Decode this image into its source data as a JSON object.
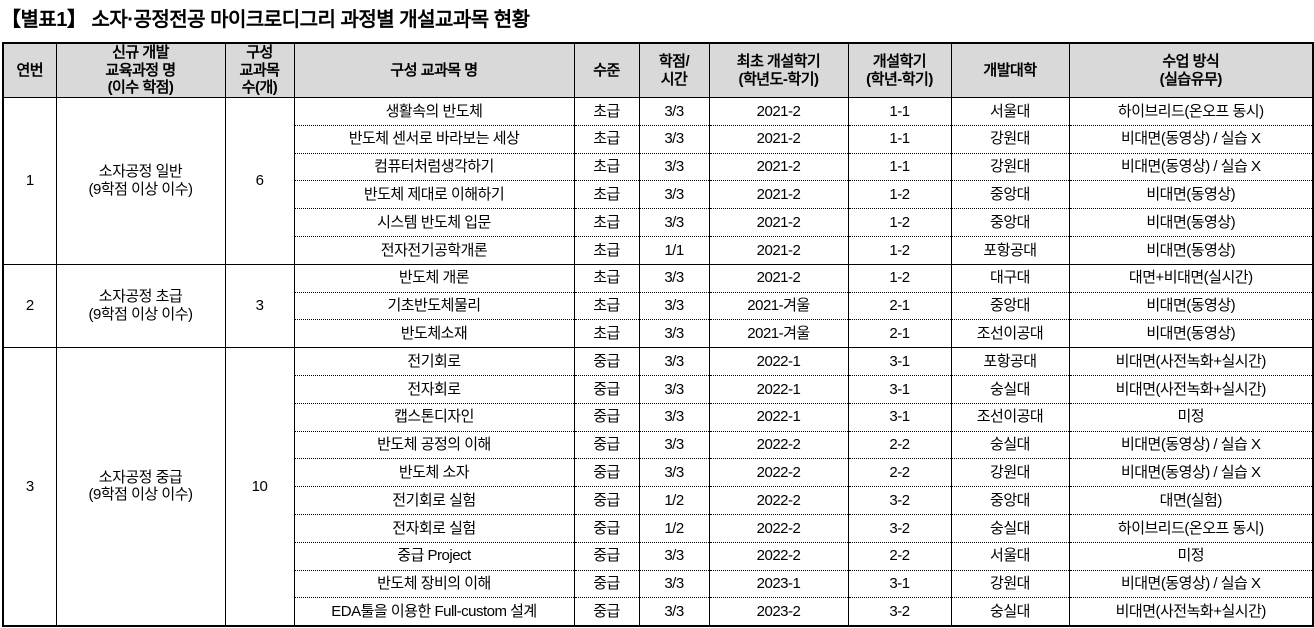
{
  "page_title": "【별표1】 소자·공정전공 마이크로디그리 과정별 개설교과목 현황",
  "table": {
    "headers": [
      {
        "label": "연번"
      },
      {
        "label": "신규 개발\n교육과정 명\n(이수 학점)"
      },
      {
        "label": "구성\n교과목\n수(개)"
      },
      {
        "label": "구성 교과목 명"
      },
      {
        "label": "수준"
      },
      {
        "label": "학점/\n시간"
      },
      {
        "label": "최초 개설학기\n(학년도-학기)"
      },
      {
        "label": "개설학기\n(학년-학기)"
      },
      {
        "label": "개발대학"
      },
      {
        "label": "수업 방식\n(실습유무)"
      }
    ],
    "groups": [
      {
        "no": "1",
        "program": "소자공정 일반\n(9학점 이상 이수)",
        "course_count": "6",
        "courses": [
          [
            "생활속의 반도체",
            "초급",
            "3/3",
            "2021-2",
            "1-1",
            "서울대",
            "하이브리드(온오프 동시)"
          ],
          [
            "반도체 센서로 바라보는 세상",
            "초급",
            "3/3",
            "2021-2",
            "1-1",
            "강원대",
            "비대면(동영상) / 실습 X"
          ],
          [
            "컴퓨터처럼생각하기",
            "초급",
            "3/3",
            "2021-2",
            "1-1",
            "강원대",
            "비대면(동영상) / 실습 X"
          ],
          [
            "반도체 제대로 이해하기",
            "초급",
            "3/3",
            "2021-2",
            "1-2",
            "중앙대",
            "비대면(동영상)"
          ],
          [
            "시스템 반도체 입문",
            "초급",
            "3/3",
            "2021-2",
            "1-2",
            "중앙대",
            "비대면(동영상)"
          ],
          [
            "전자전기공학개론",
            "초급",
            "1/1",
            "2021-2",
            "1-2",
            "포항공대",
            "비대면(동영상)"
          ]
        ]
      },
      {
        "no": "2",
        "program": "소자공정 초급\n(9학점 이상 이수)",
        "course_count": "3",
        "courses": [
          [
            "반도체 개론",
            "초급",
            "3/3",
            "2021-2",
            "1-2",
            "대구대",
            "대면+비대면(실시간)"
          ],
          [
            "기초반도체물리",
            "초급",
            "3/3",
            "2021-겨울",
            "2-1",
            "중앙대",
            "비대면(동영상)"
          ],
          [
            "반도체소재",
            "초급",
            "3/3",
            "2021-겨울",
            "2-1",
            "조선이공대",
            "비대면(동영상)"
          ]
        ]
      },
      {
        "no": "3",
        "program": "소자공정 중급\n(9학점 이상 이수)",
        "course_count": "10",
        "courses": [
          [
            "전기회로",
            "중급",
            "3/3",
            "2022-1",
            "3-1",
            "포항공대",
            "비대면(사전녹화+실시간)"
          ],
          [
            "전자회로",
            "중급",
            "3/3",
            "2022-1",
            "3-1",
            "숭실대",
            "비대면(사전녹화+실시간)"
          ],
          [
            "캡스톤디자인",
            "중급",
            "3/3",
            "2022-1",
            "3-1",
            "조선이공대",
            "미정"
          ],
          [
            "반도체 공정의 이해",
            "중급",
            "3/3",
            "2022-2",
            "2-2",
            "숭실대",
            "비대면(동영상) / 실습 X"
          ],
          [
            "반도체 소자",
            "중급",
            "3/3",
            "2022-2",
            "2-2",
            "강원대",
            "비대면(동영상) / 실습 X"
          ],
          [
            "전기회로 실험",
            "중급",
            "1/2",
            "2022-2",
            "3-2",
            "중앙대",
            "대면(실험)"
          ],
          [
            "전자회로 실험",
            "중급",
            "1/2",
            "2022-2",
            "3-2",
            "숭실대",
            "하이브리드(온오프 동시)"
          ],
          [
            "중급 Project",
            "중급",
            "3/3",
            "2022-2",
            "2-2",
            "서울대",
            "미정"
          ],
          [
            "반도체 장비의 이해",
            "중급",
            "3/3",
            "2023-1",
            "3-1",
            "강원대",
            "비대면(동영상) / 실습 X"
          ],
          [
            "EDA툴을 이용한 Full-custom 설계",
            "중급",
            "3/3",
            "2023-2",
            "3-2",
            "숭실대",
            "비대면(사전녹화+실시간)"
          ]
        ]
      }
    ],
    "header_bg_color": "#d9d9d9",
    "border_color": "#000000"
  }
}
